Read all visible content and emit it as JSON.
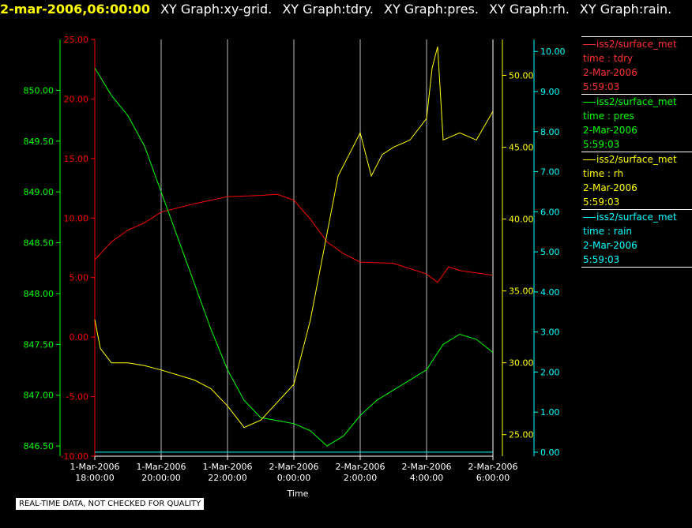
{
  "header": {
    "time": "2-mar-2006,06:00:00",
    "items": [
      "XY Graph:xy-grid.",
      "XY Graph:tdry.",
      "XY Graph:pres.",
      "XY Graph:rh.",
      "XY Graph:rain."
    ]
  },
  "colors": {
    "tdry": "#ff0000",
    "pres": "#00ff00",
    "rh": "#ffff00",
    "rain": "#00ffff",
    "grid": "#ffffff"
  },
  "legend": [
    {
      "source": "iss2/surface_met",
      "var": "time : tdry",
      "date": "2-Mar-2006",
      "time": "5:59:03",
      "color": "#ff3030"
    },
    {
      "source": "iss2/surface_met",
      "var": "time : pres",
      "date": "2-Mar-2006",
      "time": "5:59:03",
      "color": "#00ff00"
    },
    {
      "source": "iss2/surface_met",
      "var": "time : rh",
      "date": "2-Mar-2006",
      "time": "5:59:03",
      "color": "#ffff00"
    },
    {
      "source": "iss2/surface_met",
      "var": "time : rain",
      "date": "2-Mar-2006",
      "time": "5:59:03",
      "color": "#00ffff"
    }
  ],
  "quality_note": "REAL-TIME DATA, NOT CHECKED FOR QUALITY",
  "chart_data": {
    "type": "line",
    "xlabel": "Time",
    "x_ticks": [
      [
        "1-Mar-2006",
        "18:00:00"
      ],
      [
        "1-Mar-2006",
        "20:00:00"
      ],
      [
        "1-Mar-2006",
        "22:00:00"
      ],
      [
        "2-Mar-2006",
        "0:00:00"
      ],
      [
        "2-Mar-2006",
        "2:00:00"
      ],
      [
        "2-Mar-2006",
        "4:00:00"
      ],
      [
        "2-Mar-2006",
        "6:00:00"
      ]
    ],
    "xlim": [
      "2006-03-01 18:00",
      "2006-03-02 06:00"
    ],
    "grid": true,
    "axes": {
      "tdry": {
        "ylim": [
          -10,
          25
        ],
        "ticks": [
          "25.00",
          "20.00",
          "15.00",
          "10.00",
          "5.00",
          "0.00",
          "-5.00",
          "-10.00"
        ]
      },
      "pres": {
        "ylim": [
          846.4,
          850.5
        ],
        "ticks": [
          "850.00",
          "849.50",
          "849.00",
          "848.50",
          "848.00",
          "847.50",
          "847.00",
          "846.50"
        ]
      },
      "rh": {
        "ylim": [
          23.5,
          52.5
        ],
        "ticks": [
          "50.00",
          "45.00",
          "40.00",
          "35.00",
          "30.00",
          "25.00"
        ]
      },
      "rain": {
        "ylim": [
          -0.1,
          10.3
        ],
        "ticks": [
          "10.00",
          "9.00",
          "8.00",
          "7.00",
          "6.00",
          "5.00",
          "4.00",
          "3.00",
          "2.00",
          "1.00",
          "0.00"
        ]
      }
    },
    "series": [
      {
        "name": "tdry",
        "axis": "tdry",
        "x": [
          "2006-03-01 18:00",
          "2006-03-01 18:30",
          "2006-03-01 19:00",
          "2006-03-01 19:30",
          "2006-03-01 20:00",
          "2006-03-01 21:00",
          "2006-03-01 22:00",
          "2006-03-01 23:00",
          "2006-03-01 23:30",
          "2006-03-02 00:00",
          "2006-03-02 00:30",
          "2006-03-02 01:00",
          "2006-03-02 01:30",
          "2006-03-02 02:00",
          "2006-03-02 03:00",
          "2006-03-02 04:00",
          "2006-03-02 04:20",
          "2006-03-02 04:40",
          "2006-03-02 05:00",
          "2006-03-02 06:00"
        ],
        "y": [
          6.5,
          8.0,
          9.0,
          9.6,
          10.5,
          11.2,
          11.8,
          11.9,
          12.0,
          11.5,
          9.9,
          8.0,
          7.0,
          6.3,
          6.2,
          5.3,
          4.6,
          5.9,
          5.6,
          5.2
        ]
      },
      {
        "name": "pres",
        "axis": "pres",
        "x": [
          "2006-03-01 18:00",
          "2006-03-01 18:30",
          "2006-03-01 19:00",
          "2006-03-01 19:30",
          "2006-03-01 20:00",
          "2006-03-01 20:30",
          "2006-03-01 21:00",
          "2006-03-01 21:30",
          "2006-03-01 22:00",
          "2006-03-01 22:30",
          "2006-03-01 23:00",
          "2006-03-01 23:30",
          "2006-03-02 00:00",
          "2006-03-02 00:30",
          "2006-03-02 01:00",
          "2006-03-02 01:30",
          "2006-03-02 02:00",
          "2006-03-02 02:30",
          "2006-03-02 03:00",
          "2006-03-02 03:30",
          "2006-03-02 04:00",
          "2006-03-02 04:30",
          "2006-03-02 05:00",
          "2006-03-02 05:30",
          "2006-03-02 06:00"
        ],
        "y": [
          850.22,
          849.95,
          849.75,
          849.45,
          849.0,
          848.55,
          848.1,
          847.65,
          847.25,
          846.95,
          846.78,
          846.75,
          846.72,
          846.65,
          846.5,
          846.6,
          846.8,
          846.95,
          847.05,
          847.15,
          847.25,
          847.5,
          847.6,
          847.55,
          847.42
        ]
      },
      {
        "name": "rh",
        "axis": "rh",
        "x": [
          "2006-03-01 18:00",
          "2006-03-01 18:10",
          "2006-03-01 18:30",
          "2006-03-01 19:00",
          "2006-03-01 19:30",
          "2006-03-01 20:00",
          "2006-03-01 21:00",
          "2006-03-01 21:30",
          "2006-03-01 22:00",
          "2006-03-01 22:30",
          "2006-03-01 23:00",
          "2006-03-02 00:00",
          "2006-03-02 00:30",
          "2006-03-02 01:00",
          "2006-03-02 01:20",
          "2006-03-02 01:40",
          "2006-03-02 02:00",
          "2006-03-02 02:20",
          "2006-03-02 02:40",
          "2006-03-02 03:00",
          "2006-03-02 03:30",
          "2006-03-02 04:00",
          "2006-03-02 04:10",
          "2006-03-02 04:20",
          "2006-03-02 04:30",
          "2006-03-02 05:00",
          "2006-03-02 05:30",
          "2006-03-02 06:00"
        ],
        "y": [
          33.0,
          31.0,
          30.0,
          30.0,
          29.8,
          29.5,
          28.8,
          28.2,
          27.0,
          25.5,
          26.0,
          28.5,
          33.0,
          39.0,
          43.0,
          44.5,
          46.0,
          43.0,
          44.5,
          45.0,
          45.5,
          47.0,
          50.5,
          52.0,
          45.5,
          46.0,
          45.5,
          47.5
        ]
      },
      {
        "name": "rain",
        "axis": "rain",
        "x": [
          "2006-03-01 18:00",
          "2006-03-02 06:00"
        ],
        "y": [
          0.0,
          0.0
        ]
      }
    ]
  }
}
